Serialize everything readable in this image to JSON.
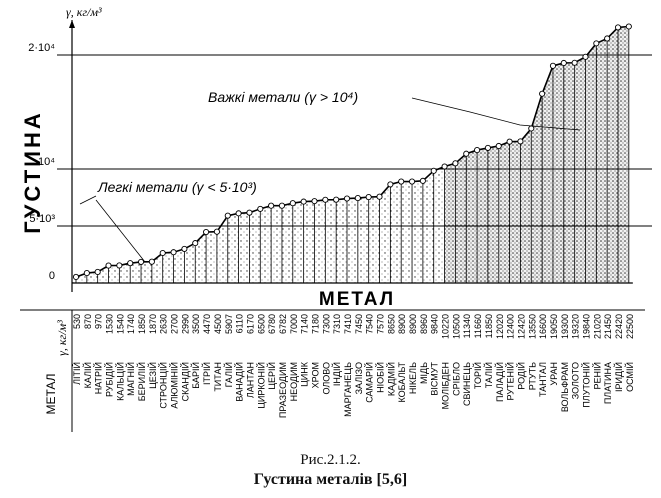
{
  "chart_data": {
    "type": "area",
    "ylabel": "ГУСТИНА",
    "yunit": "γ, кг/м³",
    "xlabel": "МЕТАЛ",
    "yticks": [
      {
        "value": 0,
        "label": "0"
      },
      {
        "value": 5000,
        "label": "5·10³"
      },
      {
        "value": 10000,
        "label": "10⁴"
      },
      {
        "value": 20000,
        "label": "2·10⁴"
      }
    ],
    "ylim": [
      0,
      23000
    ],
    "table_value_header": "γ, кг/м³",
    "table_name_header": "МЕТАЛ",
    "heavy_threshold": 10000,
    "categories": [
      "ЛІТІЙ",
      "КАЛІЙ",
      "НАТРІЙ",
      "РУБІДІЙ",
      "КАЛЬЦІЙ",
      "МАГНІЙ",
      "БЕРИЛІЙ",
      "ЦЕЗІЙ",
      "СТРОНЦІЙ",
      "АЛЮМІНІЙ",
      "СКАНДІЙ",
      "БАРІЙ",
      "ІТРІЙ",
      "ТИТАН",
      "ГАЛІЙ",
      "ВАНАДІЙ",
      "ЛАНТАН",
      "ЦИРКОНІЙ",
      "ЦЕРІЙ",
      "ПРАЗЕОДИМ",
      "НЕОДИМ",
      "ЦИНК",
      "ХРОМ",
      "ОЛОВО",
      "ІНДІЙ",
      "МАРГАНЕЦЬ",
      "ЗАЛІЗО",
      "САМАРІЙ",
      "НІОБІЙ",
      "КАДМІЙ",
      "КОБАЛЬТ",
      "НІКЕЛЬ",
      "МІДЬ",
      "ВІСМУТ",
      "МОЛІБДЕН",
      "СРІБЛО",
      "СВИНЕЦЬ",
      "ТОРІЙ",
      "ТАЛІЙ",
      "ПАЛАДІЙ",
      "РУТЕНІЙ",
      "РОДІЙ",
      "РТУТЬ",
      "ТАНТАЛ",
      "УРАН",
      "ВОЛЬФРАМ",
      "ЗОЛОТО",
      "ПЛУТОНІЙ",
      "РЕНІЙ",
      "ПЛАТИНА",
      "ІРИДІЙ",
      "ОСМІЙ"
    ],
    "values": [
      530,
      870,
      970,
      1530,
      1540,
      1740,
      1850,
      1870,
      2630,
      2700,
      2990,
      3500,
      4470,
      4500,
      5907,
      6110,
      6170,
      6500,
      6780,
      6782,
      7000,
      7140,
      7180,
      7300,
      7310,
      7410,
      7450,
      7540,
      7570,
      8650,
      8900,
      8900,
      8960,
      9840,
      10220,
      10500,
      11340,
      11660,
      11850,
      12020,
      12400,
      12420,
      13550,
      16600,
      19050,
      19300,
      19320,
      19840,
      21020,
      21450,
      22420,
      22500
    ],
    "table_labels": [
      "530",
      "870",
      "970",
      "1530",
      "1540",
      "1740",
      "1850",
      "1870",
      "2630",
      "2700",
      "2990",
      "3500",
      "4470",
      "4500",
      "5907",
      "6110",
      "6170",
      "6500",
      "6780",
      "6782",
      "7000",
      "7140",
      "7180",
      "7300",
      "7310",
      "7410",
      "7450",
      "7540",
      "7570",
      "8650",
      "8900",
      "8900",
      "8960",
      "9840",
      "10220",
      "10500",
      "11340",
      "11660",
      "11850",
      "12020",
      "12400",
      "12420",
      "13550",
      "16600",
      "19050",
      "19300",
      "19320",
      "19840",
      "21020",
      "21450",
      "22420",
      "22500"
    ],
    "annotations": [
      {
        "text": "Важкі метали (γ > 10⁴)"
      },
      {
        "text": "Легкі метали (γ < 5·10³)"
      }
    ]
  },
  "caption": {
    "figure": "Рис.2.1.2.",
    "title": "Густина металів [5,6]"
  }
}
